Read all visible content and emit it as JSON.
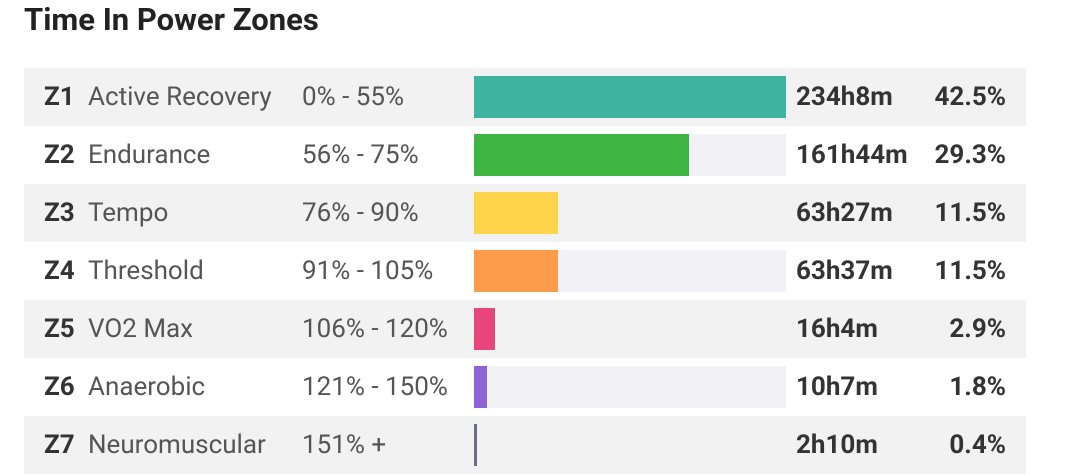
{
  "title": "Time In Power Zones",
  "zones": [
    {
      "zone": "Z1",
      "name": "Active Recovery",
      "range": "0% - 55%",
      "time": "234h8m",
      "percent": 42.5,
      "percent_label": "42.5%",
      "color": "#3db3a0"
    },
    {
      "zone": "Z2",
      "name": "Endurance",
      "range": "56% - 75%",
      "time": "161h44m",
      "percent": 29.3,
      "percent_label": "29.3%",
      "color": "#3db540"
    },
    {
      "zone": "Z3",
      "name": "Tempo",
      "range": "76% - 90%",
      "time": "63h27m",
      "percent": 11.5,
      "percent_label": "11.5%",
      "color": "#fdd44a"
    },
    {
      "zone": "Z4",
      "name": "Threshold",
      "range": "91% - 105%",
      "time": "63h37m",
      "percent": 11.5,
      "percent_label": "11.5%",
      "color": "#fd9c4a"
    },
    {
      "zone": "Z5",
      "name": "VO2 Max",
      "range": "106% - 120%",
      "time": "16h4m",
      "percent": 2.9,
      "percent_label": "2.9%",
      "color": "#e8457a"
    },
    {
      "zone": "Z6",
      "name": "Anaerobic",
      "range": "121% - 150%",
      "time": "10h7m",
      "percent": 1.8,
      "percent_label": "1.8%",
      "color": "#8f63d8"
    },
    {
      "zone": "Z7",
      "name": "Neuromuscular",
      "range": "151% +",
      "time": "2h10m",
      "percent": 0.4,
      "percent_label": "0.4%",
      "color": "#6b6b8a"
    }
  ]
}
